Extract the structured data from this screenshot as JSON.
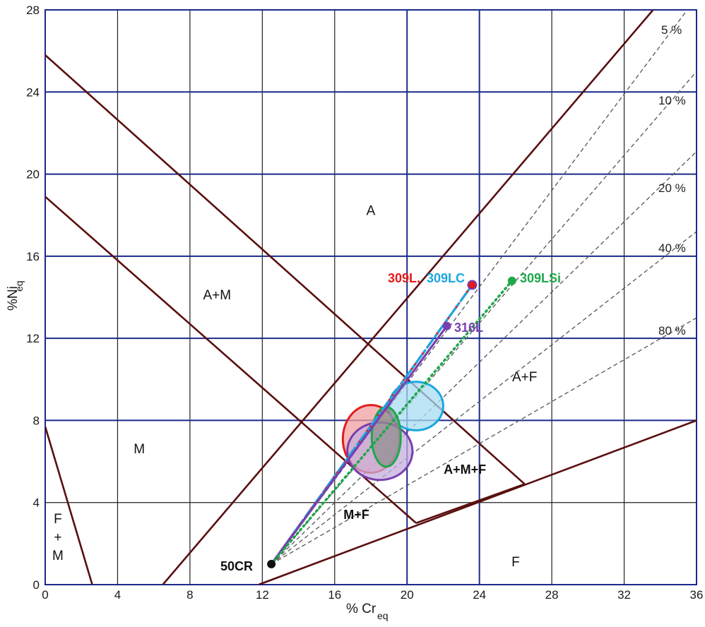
{
  "chart_data": {
    "type": "scatter",
    "title": "",
    "xlabel": "% Cr",
    "xlabel_sub": "eq",
    "ylabel": "%Ni",
    "ylabel_sub": "eq",
    "xlim": [
      0,
      36
    ],
    "ylim": [
      0,
      28
    ],
    "x_ticks": [
      "0",
      "4",
      "8",
      "12",
      "16",
      "20",
      "24",
      "28",
      "32",
      "36"
    ],
    "y_ticks": [
      "0",
      "4",
      "8",
      "12",
      "16",
      "20",
      "24",
      "28"
    ],
    "grid": true,
    "boundary_lines": [
      {
        "name": "M-upper",
        "points": [
          [
            0,
            25.8
          ],
          [
            26.5,
            4.9
          ]
        ]
      },
      {
        "name": "M-lower",
        "points": [
          [
            0,
            18.9
          ],
          [
            20.5,
            3.0
          ]
        ]
      },
      {
        "name": "A-M",
        "points": [
          [
            6.5,
            0
          ],
          [
            33.6,
            28
          ]
        ]
      },
      {
        "name": "F-M",
        "points": [
          [
            0,
            7.7
          ],
          [
            2.6,
            0
          ]
        ]
      },
      {
        "name": "F-boundary",
        "points": [
          [
            11.8,
            0
          ],
          [
            36,
            8.0
          ]
        ]
      },
      {
        "name": "A+M+F-lower",
        "points": [
          [
            20.5,
            3.0
          ],
          [
            26.5,
            4.9
          ]
        ]
      }
    ],
    "ferrite_lines": [
      {
        "label": "5 %",
        "points": [
          [
            12.5,
            1.0
          ],
          [
            36,
            28.6
          ]
        ]
      },
      {
        "label": "10 %",
        "points": [
          [
            12.5,
            1.0
          ],
          [
            36,
            25.0
          ]
        ]
      },
      {
        "label": "20 %",
        "points": [
          [
            12.5,
            1.0
          ],
          [
            36,
            21.1
          ]
        ]
      },
      {
        "label": "40 %",
        "points": [
          [
            12.5,
            1.0
          ],
          [
            36,
            17.2
          ]
        ]
      },
      {
        "label": "80 %",
        "points": [
          [
            12.5,
            1.0
          ],
          [
            36,
            13.0
          ]
        ]
      }
    ],
    "regions": [
      {
        "label": "A",
        "x": 18,
        "y": 18
      },
      {
        "label": "A+M",
        "x": 9.5,
        "y": 13.9
      },
      {
        "label": "M",
        "x": 5.2,
        "y": 6.4
      },
      {
        "label": "F",
        "x": 0.7,
        "y": 3.0
      },
      {
        "label": "+",
        "x": 0.7,
        "y": 2.1
      },
      {
        "label": "M",
        "x": 0.7,
        "y": 1.2
      },
      {
        "label": "A+F",
        "x": 26.5,
        "y": 9.9
      },
      {
        "label": "A+M+F",
        "x": 23.2,
        "y": 5.4
      },
      {
        "label": "M+F",
        "x": 17.2,
        "y": 3.2
      },
      {
        "label": "F",
        "x": 26.0,
        "y": 0.9
      }
    ],
    "series": [
      {
        "name": "309L",
        "color": "#e31b1b",
        "style": "dashed",
        "x": [
          12.5,
          23.6
        ],
        "y": [
          1.0,
          14.6
        ]
      },
      {
        "name": "309LC",
        "color": "#1aa7e0",
        "style": "dashdot",
        "x": [
          12.5,
          23.6
        ],
        "y": [
          1.0,
          14.6
        ]
      },
      {
        "name": "316L",
        "color": "#7a3fb0",
        "style": "solid",
        "x": [
          12.5,
          22.2
        ],
        "y": [
          1.0,
          12.6
        ]
      },
      {
        "name": "309LSi",
        "color": "#1ea84a",
        "style": "dotted",
        "x": [
          12.5,
          25.8
        ],
        "y": [
          1.0,
          14.8
        ]
      }
    ],
    "points": [
      {
        "label": "50CR",
        "x": 12.5,
        "y": 1.0,
        "color": "#111111"
      },
      {
        "label": "309L, 309LC",
        "x": 23.6,
        "y": 14.6,
        "color": "#e31b1b"
      },
      {
        "label": "316L",
        "x": 22.2,
        "y": 12.6,
        "color": "#7a3fb0"
      },
      {
        "label": "309LSi",
        "x": 25.8,
        "y": 14.8,
        "color": "#1ea84a"
      }
    ],
    "ellipses": [
      {
        "name": "309L",
        "cx": 18.0,
        "cy": 7.1,
        "rx": 1.55,
        "ry": 1.65,
        "stroke": "#e31b1b",
        "fill": "#f2a0a0"
      },
      {
        "name": "309LC",
        "cx": 20.5,
        "cy": 8.7,
        "rx": 1.5,
        "ry": 1.18,
        "stroke": "#1aa7e0",
        "fill": "#a8dcf2"
      },
      {
        "name": "316L",
        "cx": 18.5,
        "cy": 6.5,
        "rx": 1.8,
        "ry": 1.4,
        "stroke": "#7a3fb0",
        "fill": "#c4aedd"
      },
      {
        "name": "309LSi",
        "cx": 18.85,
        "cy": 7.2,
        "rx": 0.8,
        "ry": 1.45,
        "stroke": "#1ea84a",
        "fill": "#8f8f8f"
      }
    ]
  },
  "labels": {
    "p50cr": "50CR",
    "p309l": "309L,",
    "p309lc": "309LC",
    "p316l": "316L",
    "p309lsi": "309LSi"
  },
  "colors": {
    "grid": "#1b2a8a",
    "boundary": "#5a0f0f",
    "ferrite": "#555555"
  }
}
